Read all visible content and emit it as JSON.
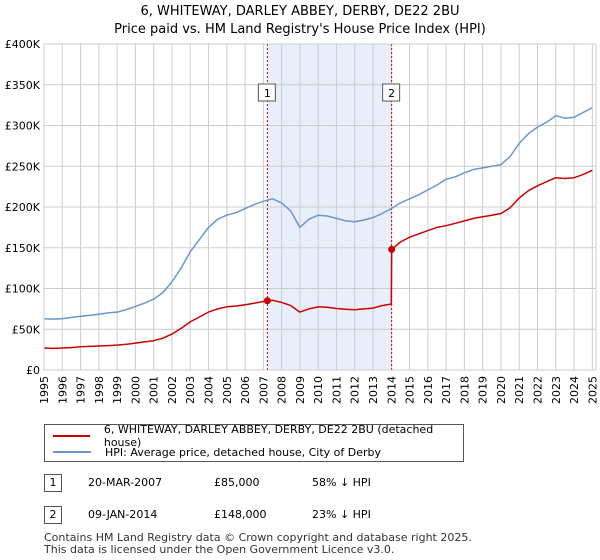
{
  "title_line1": "6, WHITEWAY, DARLEY ABBEY, DERBY, DE22 2BU",
  "title_line2": "Price paid vs. HM Land Registry's House Price Index (HPI)",
  "legend": {
    "red": "6, WHITEWAY, DARLEY ABBEY, DERBY, DE22 2BU (detached house)",
    "blue": "HPI: Average price, detached house, City of Derby"
  },
  "transactions": [
    {
      "num": "1",
      "date": "20-MAR-2007",
      "price": "£85,000",
      "hpi": "58% ↓ HPI"
    },
    {
      "num": "2",
      "date": "09-JAN-2014",
      "price": "£148,000",
      "hpi": "23% ↓ HPI"
    }
  ],
  "footer_line1": "Contains HM Land Registry data © Crown copyright and database right 2025.",
  "footer_line2": "This data is licensed under the Open Government Licence v3.0.",
  "colors": {
    "red": "#cc0000",
    "blue": "#6a96cc",
    "shade": "#e8eefa",
    "grid": "#cccccc",
    "marker": "#cc0000"
  },
  "chart_data": {
    "type": "line",
    "title": "6, WHITEWAY, DARLEY ABBEY, DERBY, DE22 2BU — Price paid vs. HM Land Registry's House Price Index (HPI)",
    "xlabel": "",
    "ylabel": "",
    "xlim": [
      1995,
      2025.2
    ],
    "ylim": [
      0,
      400000
    ],
    "y_ticks": [
      0,
      50000,
      100000,
      150000,
      200000,
      250000,
      300000,
      350000,
      400000
    ],
    "y_tick_labels": [
      "£0",
      "£50K",
      "£100K",
      "£150K",
      "£200K",
      "£250K",
      "£300K",
      "£350K",
      "£400K"
    ],
    "x_ticks": [
      1995,
      1996,
      1997,
      1998,
      1999,
      2000,
      2001,
      2002,
      2003,
      2004,
      2005,
      2006,
      2007,
      2008,
      2009,
      2010,
      2011,
      2012,
      2013,
      2014,
      2015,
      2016,
      2017,
      2018,
      2019,
      2020,
      2021,
      2022,
      2023,
      2024,
      2025
    ],
    "shaded_range": [
      2007.22,
      2014.02
    ],
    "sale_markers": [
      {
        "label": "1",
        "x": 2007.22,
        "y": 85000
      },
      {
        "label": "2",
        "x": 2014.02,
        "y": 148000
      }
    ],
    "series": [
      {
        "name": "HPI: Average price, detached house, City of Derby",
        "color": "#6a96cc",
        "x": [
          1995,
          1995.5,
          1996,
          1996.5,
          1997,
          1997.5,
          1998,
          1998.5,
          1999,
          1999.5,
          2000,
          2000.5,
          2001,
          2001.5,
          2002,
          2002.5,
          2003,
          2003.5,
          2004,
          2004.5,
          2005,
          2005.5,
          2006,
          2006.5,
          2007,
          2007.5,
          2008,
          2008.5,
          2009,
          2009.5,
          2010,
          2010.5,
          2011,
          2011.5,
          2012,
          2012.5,
          2013,
          2013.5,
          2014,
          2014.5,
          2015,
          2015.5,
          2016,
          2016.5,
          2017,
          2017.5,
          2018,
          2018.5,
          2019,
          2019.5,
          2020,
          2020.5,
          2021,
          2021.5,
          2022,
          2022.5,
          2023,
          2023.5,
          2024,
          2024.5,
          2025
        ],
        "values": [
          63000,
          62500,
          63000,
          64500,
          66000,
          67000,
          68500,
          70000,
          71000,
          74000,
          78000,
          82000,
          87000,
          95000,
          108000,
          125000,
          145000,
          160000,
          175000,
          185000,
          190000,
          193000,
          198000,
          203000,
          207000,
          210000,
          205000,
          195000,
          175000,
          185000,
          190000,
          189000,
          186000,
          183000,
          182000,
          184000,
          187000,
          192000,
          198000,
          205000,
          210000,
          215000,
          221000,
          227000,
          234000,
          237000,
          242000,
          246000,
          248000,
          250000,
          252000,
          262000,
          278000,
          290000,
          298000,
          304000,
          312000,
          309000,
          310000,
          316000,
          322000
        ]
      },
      {
        "name": "6, WHITEWAY, DARLEY ABBEY, DERBY, DE22 2BU (detached house)",
        "color": "#cc0000",
        "x": [
          1995,
          1995.5,
          1996,
          1996.5,
          1997,
          1997.5,
          1998,
          1998.5,
          1999,
          1999.5,
          2000,
          2000.5,
          2001,
          2001.5,
          2002,
          2002.5,
          2003,
          2003.5,
          2004,
          2004.5,
          2005,
          2005.5,
          2006,
          2006.5,
          2007,
          2007.22,
          2007.5,
          2008,
          2008.5,
          2009,
          2009.5,
          2010,
          2010.5,
          2011,
          2011.5,
          2012,
          2012.5,
          2013,
          2013.5,
          2014.0,
          2014.02,
          2014.5,
          2015,
          2015.5,
          2016,
          2016.5,
          2017,
          2017.5,
          2018,
          2018.5,
          2019,
          2019.5,
          2020,
          2020.5,
          2021,
          2021.5,
          2022,
          2022.5,
          2023,
          2023.5,
          2024,
          2024.5,
          2025
        ],
        "values": [
          27000,
          26500,
          27000,
          27500,
          28500,
          29000,
          29500,
          30000,
          30500,
          31500,
          33000,
          34500,
          36000,
          39000,
          44000,
          51000,
          59000,
          65000,
          71000,
          75000,
          77500,
          78500,
          80000,
          82000,
          84000,
          85000,
          85500,
          83000,
          79000,
          71000,
          75000,
          77500,
          77000,
          75500,
          74500,
          74000,
          75000,
          76000,
          79000,
          81000,
          148000,
          157000,
          163000,
          167000,
          171000,
          175000,
          177000,
          180000,
          183000,
          186000,
          188000,
          190000,
          192000,
          199000,
          211000,
          220000,
          226000,
          231000,
          236000,
          235000,
          236000,
          240000,
          245000
        ]
      }
    ]
  }
}
